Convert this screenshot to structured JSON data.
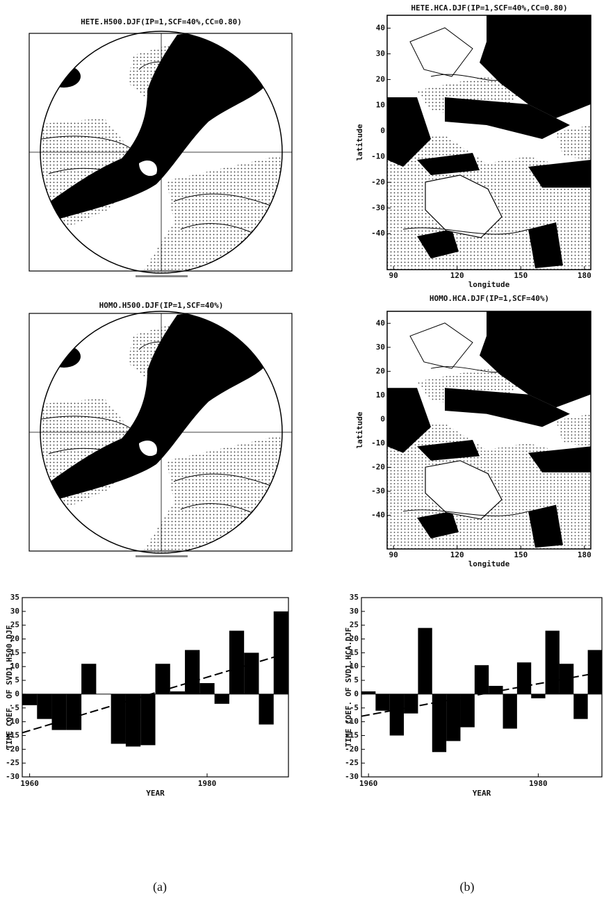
{
  "chart_data": [
    {
      "type": "bar",
      "y_label": "TIME COEF. OF SVD1.H500.DJF",
      "x_label": "YEAR",
      "categories": [
        "1960",
        null,
        null,
        null,
        null,
        null,
        null,
        null,
        null,
        null,
        null,
        null,
        "1980",
        null,
        null,
        null,
        null,
        null
      ],
      "values": [
        -4,
        -9,
        -13,
        -13,
        11,
        0,
        -18,
        -19,
        -18.5,
        11,
        1,
        16,
        4,
        -3.5,
        23,
        15,
        -11,
        30
      ],
      "color": "#000000",
      "ylim": [
        -30,
        35
      ],
      "yticks": [
        -30,
        -25,
        -20,
        -15,
        -10,
        -5,
        0,
        5,
        10,
        15,
        20,
        25,
        30,
        35
      ],
      "trend": [
        -14,
        15
      ]
    },
    {
      "type": "bar",
      "y_label": "TIME COEF. OF SVD1.HCA.DJF",
      "x_label": "YEAR",
      "categories": [
        "1960",
        null,
        null,
        null,
        null,
        null,
        null,
        null,
        null,
        null,
        null,
        null,
        "1980",
        null,
        null,
        null,
        null
      ],
      "values": [
        1,
        -6,
        -15,
        -7,
        24,
        -21,
        -17,
        -12,
        10.5,
        3,
        -12.5,
        11.5,
        -1.5,
        23,
        11,
        -9,
        16
      ],
      "color": "#000000",
      "ylim": [
        -30,
        35
      ],
      "yticks": [
        -30,
        -25,
        -20,
        -15,
        -10,
        -5,
        0,
        5,
        10,
        15,
        20,
        25,
        30,
        35
      ],
      "trend": [
        -8,
        8
      ]
    }
  ],
  "polar_maps": [
    {
      "title": "HETE.H500.DJF(IP=1,SCF=40%,CC=0.80)"
    },
    {
      "title": "HOMO.H500.DJF(IP=1,SCF=40%)"
    }
  ],
  "region_maps": [
    {
      "title": "HETE.HCA.DJF(IP=1,SCF=40%,CC=0.80)",
      "x_label": "longitude",
      "y_label": "latitude",
      "xlim": [
        87,
        183
      ],
      "ylim": [
        -54,
        45
      ],
      "xticks": [
        90,
        120,
        150,
        180
      ],
      "yticks": [
        40,
        30,
        20,
        10,
        0,
        -10,
        -20,
        -30,
        -40
      ]
    },
    {
      "title": "HOMO.HCA.DJF(IP=1,SCF=40%)",
      "x_label": "longitude",
      "y_label": "latitude",
      "xlim": [
        87,
        183
      ],
      "ylim": [
        -54,
        45
      ],
      "xticks": [
        90,
        120,
        150,
        180
      ],
      "yticks": [
        40,
        30,
        20,
        10,
        0,
        -10,
        -20,
        -30,
        -40
      ]
    }
  ],
  "captions": [
    "(a)",
    "(b)"
  ]
}
